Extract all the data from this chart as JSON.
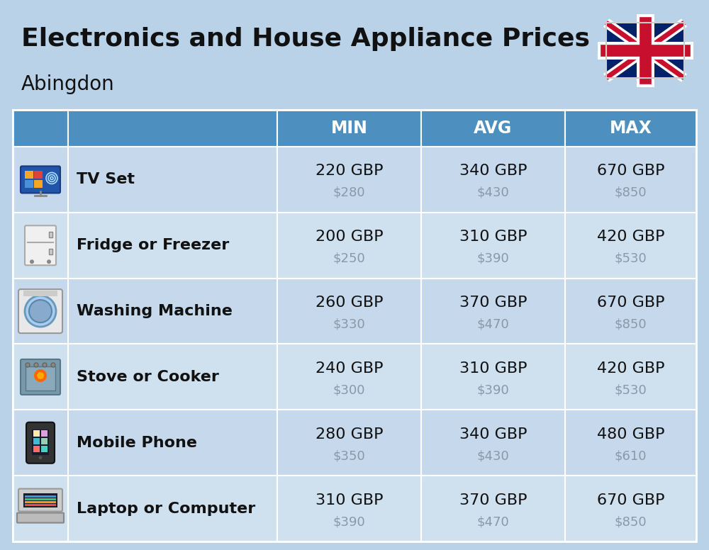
{
  "title": "Electronics and House Appliance Prices",
  "subtitle": "Abingdon",
  "bg_color": "#bad2e8",
  "header_color": "#4d8fbe",
  "header_text_color": "#ffffff",
  "col_headers": [
    "MIN",
    "AVG",
    "MAX"
  ],
  "items": [
    {
      "name": "TV Set",
      "min_gbp": "220 GBP",
      "min_usd": "$280",
      "avg_gbp": "340 GBP",
      "avg_usd": "$430",
      "max_gbp": "670 GBP",
      "max_usd": "$850"
    },
    {
      "name": "Fridge or Freezer",
      "min_gbp": "200 GBP",
      "min_usd": "$250",
      "avg_gbp": "310 GBP",
      "avg_usd": "$390",
      "max_gbp": "420 GBP",
      "max_usd": "$530"
    },
    {
      "name": "Washing Machine",
      "min_gbp": "260 GBP",
      "min_usd": "$330",
      "avg_gbp": "370 GBP",
      "avg_usd": "$470",
      "max_gbp": "670 GBP",
      "max_usd": "$850"
    },
    {
      "name": "Stove or Cooker",
      "min_gbp": "240 GBP",
      "min_usd": "$300",
      "avg_gbp": "310 GBP",
      "avg_usd": "$390",
      "max_gbp": "420 GBP",
      "max_usd": "$530"
    },
    {
      "name": "Mobile Phone",
      "min_gbp": "280 GBP",
      "min_usd": "$350",
      "avg_gbp": "340 GBP",
      "avg_usd": "$430",
      "max_gbp": "480 GBP",
      "max_usd": "$610"
    },
    {
      "name": "Laptop or Computer",
      "min_gbp": "310 GBP",
      "min_usd": "$390",
      "avg_gbp": "370 GBP",
      "avg_usd": "$470",
      "max_gbp": "670 GBP",
      "max_usd": "$850"
    }
  ],
  "title_fontsize": 26,
  "subtitle_fontsize": 20,
  "name_fontsize": 16,
  "value_fontsize": 16,
  "usd_fontsize": 13,
  "header_fontsize": 17,
  "row_colors": [
    "#c5d8ec",
    "#cfe0ef"
  ]
}
